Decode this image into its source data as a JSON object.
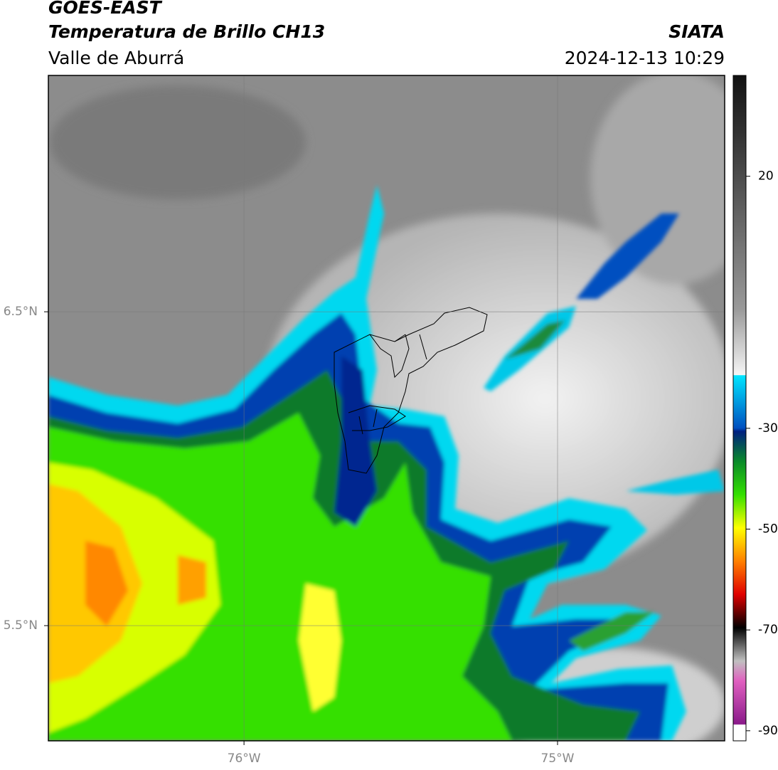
{
  "map": {
    "title": "GOES-EAST",
    "subtitle": "Temperatura de Brillo CH13",
    "region": "Valle de Aburrá",
    "source": "SIATA",
    "timestamp": "2024-12-13 10:29",
    "xlim": [
      -76.624,
      -74.467
    ],
    "ylim": [
      5.133,
      7.253
    ],
    "xticks": [
      {
        "value": -76,
        "label": "76°W"
      },
      {
        "value": -75,
        "label": "75°W"
      }
    ],
    "yticks": [
      {
        "value": 6.5,
        "label": "6.5°N"
      },
      {
        "value": 5.5,
        "label": "5.5°N"
      }
    ],
    "grid": true,
    "colorbar": {
      "lim": [
        -92,
        40
      ],
      "ticks": [
        20,
        -30,
        -50,
        -70,
        -90
      ]
    }
  }
}
